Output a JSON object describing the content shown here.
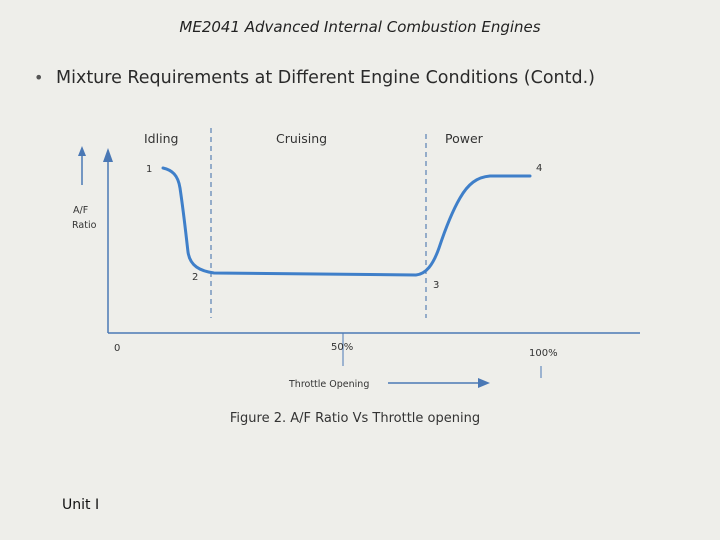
{
  "header": {
    "title": "ME2041 Advanced Internal Combustion Engines"
  },
  "slide": {
    "bullet": "Mixture Requirements at Different Engine Conditions (Contd.)"
  },
  "diagram": {
    "regions": {
      "idling": "Idling",
      "cruising": "Cruising",
      "power": "Power"
    },
    "points": {
      "p1": "1",
      "p2": "2",
      "p3": "3",
      "p4": "4"
    },
    "y_axis_label_line1": "A/F",
    "y_axis_label_line2": "Ratio",
    "x_axis": {
      "origin": "0",
      "mid": "50%",
      "end": "100%",
      "label": "Throttle Opening"
    },
    "colors": {
      "curve": "#3f7fc9",
      "axis": "#4a78b5",
      "divider": "#3a6aa8"
    }
  },
  "caption": "Figure 2. A/F Ratio  Vs Throttle opening",
  "footer": {
    "unit": "Unit I"
  }
}
